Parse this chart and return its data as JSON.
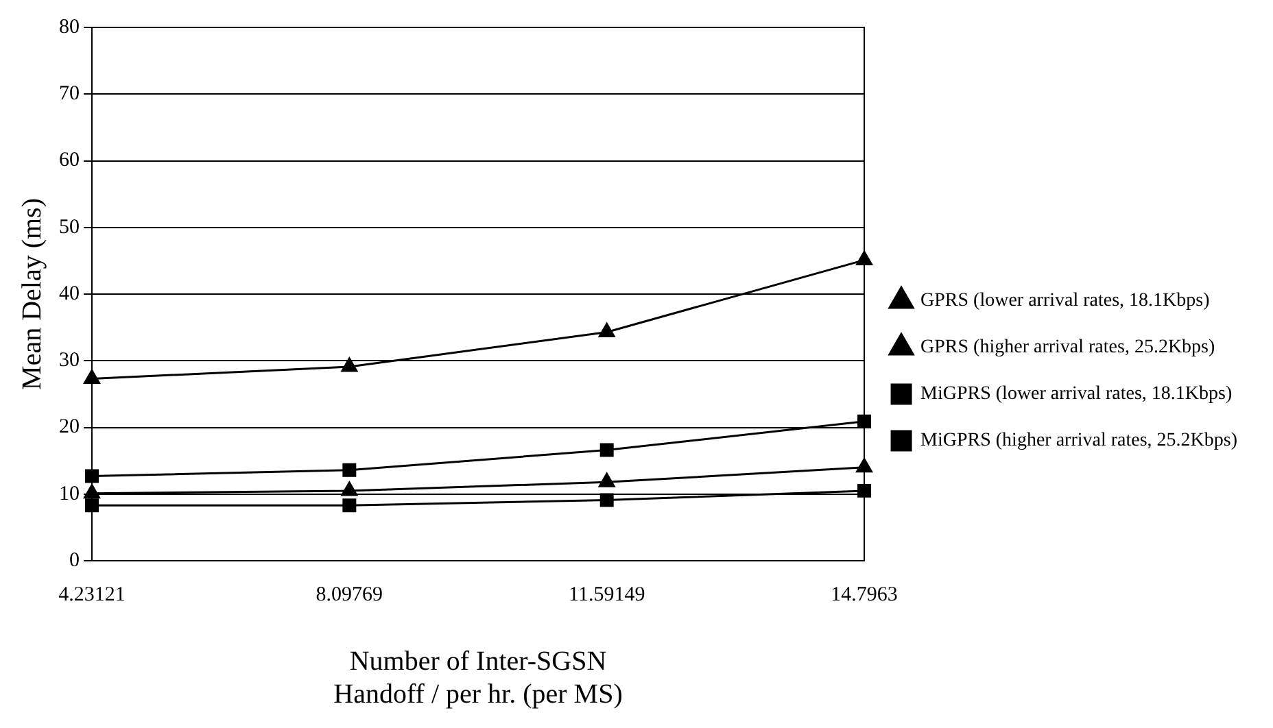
{
  "chart_data": {
    "type": "line",
    "xlabel": "Number of Inter-SGSN\nHandoff / per hr. (per MS)",
    "ylabel": "Mean Delay (ms)",
    "categories": [
      "4.23121",
      "8.09769",
      "11.59149",
      "14.7963"
    ],
    "ylim": [
      0,
      80
    ],
    "yticks": [
      0,
      10,
      20,
      30,
      40,
      50,
      60,
      70,
      80
    ],
    "grid": "y",
    "legend": "right",
    "line_style": "solid",
    "series": [
      {
        "name": "GPRS (lower arrival rates, 18.1Kbps)",
        "color": "#000000",
        "marker": "triangle",
        "values": [
          10.1,
          10.5,
          11.8,
          14.0
        ]
      },
      {
        "name": "GPRS (higher arrival rates, 25.2Kbps)",
        "color": "#000000",
        "marker": "triangle",
        "values": [
          27.3,
          29.1,
          34.3,
          45.1
        ]
      },
      {
        "name": "MiGPRS (lower arrival rates, 18.1Kbps)",
        "color": "#000000",
        "marker": "square",
        "values": [
          8.3,
          8.3,
          9.1,
          10.5
        ]
      },
      {
        "name": "MiGPRS (higher arrival rates, 25.2Kbps)",
        "color": "#000000",
        "marker": "square",
        "values": [
          12.7,
          13.6,
          16.6,
          20.9
        ]
      }
    ]
  }
}
